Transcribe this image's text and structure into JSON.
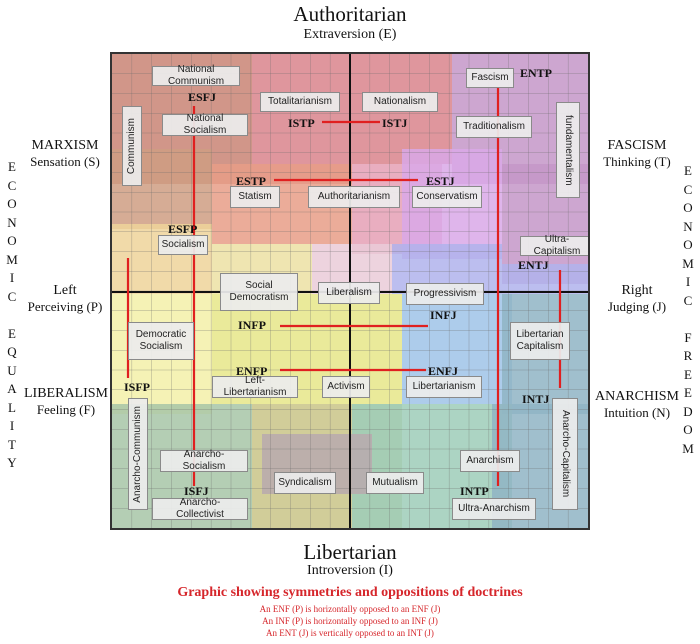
{
  "top": {
    "title": "Authoritarian",
    "subtitle": "Extraversion (E)"
  },
  "bottom": {
    "title": "Libertarian",
    "subtitle": "Introversion (I)"
  },
  "left_axis": {
    "marxism": "MARXISM",
    "sensation": "Sensation (S)",
    "left": "Left",
    "perceiving": "Perceiving (P)",
    "liberalism": "LIBERALISM",
    "feeling": "Feeling (F)",
    "vertical": "ECONOMIC EQUALITY"
  },
  "right_axis": {
    "fascism": "FASCISM",
    "thinking": "Thinking (T)",
    "right": "Right",
    "judging": "Judging (J)",
    "anarchism": "ANARCHISM",
    "intuition": "Intuition (N)",
    "vertical": "ECONOMIC FREEDOM"
  },
  "footer": {
    "title": "Graphic showing symmetries and oppositions of doctrines",
    "lines": [
      "An ENF (P)  is horizontally opposed to an ENF (J)",
      "An INF (P) is horizontally opposed to an INF (J)",
      "An ENT (J) is vertically opposed to an INT (J)"
    ]
  },
  "colors": {
    "opposition_line": "#e02020",
    "regions": [
      "#c98474",
      "#d9848c",
      "#c497c8",
      "#cf9e83",
      "#e89d87",
      "#e5a0b5",
      "#d9a8e8",
      "#eed39a",
      "#ece0a3",
      "#eacbd8",
      "#b0b3ec",
      "#e6e688",
      "#f3f0a8",
      "#9fc3e8",
      "#a7c6a7",
      "#c9c487",
      "#9ecdb8",
      "#8fb4c4",
      "#b9a9ae"
    ]
  },
  "doctrines": [
    "National Communism",
    "Totalitarianism",
    "Nationalism",
    "Fascism",
    "Communism",
    "National Socialism",
    "Traditionalism",
    "fundamentalism",
    "Statism",
    "Authoritarianism",
    "Conservatism",
    "Socialism",
    "Ultra-Capitalism",
    "Social Democratism",
    "Liberalism",
    "Progressivism",
    "Democratic Socialism",
    "Libertarian Capitalism",
    "Left-Libertarianism",
    "Activism",
    "Libertarianism",
    "Anarcho-Communism",
    "Anarcho-Capitalism",
    "Anarcho-Socialism",
    "Anarchism",
    "Syndicalism",
    "Mutualism",
    "Anarcho-Collectivist",
    "Ultra-Anarchism"
  ],
  "types": [
    "ESFJ",
    "ENTP",
    "ISTP",
    "ISTJ",
    "ESTP",
    "ESTJ",
    "ESFP",
    "ENTJ",
    "INFP",
    "INFJ",
    "ENFP",
    "ENFJ",
    "ISFP",
    "INTJ",
    "ISFJ",
    "INTP"
  ],
  "oppositions": [
    [
      "ESFJ",
      "ISFJ"
    ],
    [
      "ENTP",
      "INTP"
    ],
    [
      "ISTP",
      "ISTJ"
    ],
    [
      "ESTP",
      "ESTJ"
    ],
    [
      "ESFP",
      "ISFP"
    ],
    [
      "ENTJ",
      "INTJ"
    ],
    [
      "INFP",
      "INFJ"
    ],
    [
      "ENFP",
      "ENFJ"
    ]
  ]
}
